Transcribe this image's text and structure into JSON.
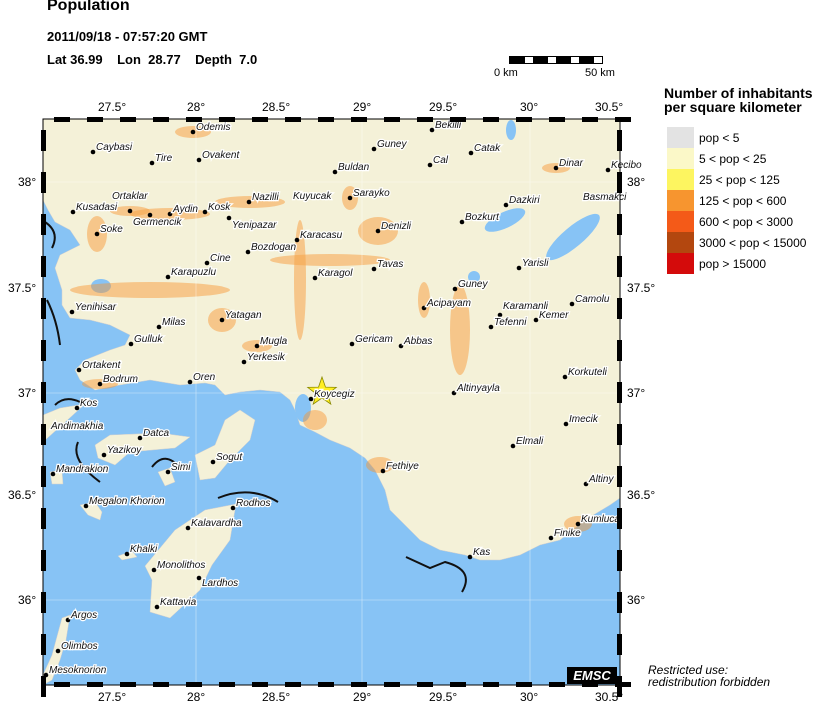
{
  "header": {
    "title": "Population",
    "datetime": "2011/09/18 - 07:57:20 GMT",
    "coords": "Lat 36.99    Lon  28.77    Depth  7.0"
  },
  "scale_bar": {
    "start_label": "0 km",
    "end_label": "50 km"
  },
  "axes": {
    "lon_ticks": [
      "27.5°",
      "28°",
      "28.5°",
      "29°",
      "29.5°",
      "30°",
      "30.5°"
    ],
    "lat_ticks": [
      "38°",
      "37.5°",
      "37°",
      "36.5°",
      "36°"
    ]
  },
  "legend": {
    "title_line1": "Number of inhabitants",
    "title_line2": "per square kilometer",
    "items": [
      {
        "label": "pop < 5",
        "color": "#e3e3e3"
      },
      {
        "label": "5 < pop < 25",
        "color": "#fbf8c8"
      },
      {
        "label": "25 < pop < 125",
        "color": "#fdf560"
      },
      {
        "label": "125 < pop < 600",
        "color": "#f7952f"
      },
      {
        "label": "600 < pop < 3000",
        "color": "#f45a18"
      },
      {
        "label": "3000 < pop < 15000",
        "color": "#b3470f"
      },
      {
        "label": "pop > 15000",
        "color": "#d40b0b"
      }
    ]
  },
  "colors": {
    "sea": "#87c3f5",
    "land": "#f4f1d8",
    "epicenter": "#ffee22"
  },
  "epicenter_icon": "star-icon",
  "cities": [
    "Odemis",
    "Caybasi",
    "Tire",
    "Ovakent",
    "Kusadasi",
    "Ortaklar",
    "Germencik",
    "Aydin",
    "Kosk",
    "Nazilli",
    "Kuyucak",
    "Yenipazar",
    "Soke",
    "Karacasu",
    "Bozdogan",
    "Cine",
    "Karapuzlu",
    "Karagol",
    "Yenihisar",
    "Milas",
    "Yatagan",
    "Gulluk",
    "Mugla",
    "Yerkesik",
    "Ortakent",
    "Bodrum",
    "Oren",
    "Koycegiz",
    "Kos",
    "Andimakhia",
    "Datca",
    "Yazikoy",
    "Mandrakion",
    "Simi",
    "Sogut",
    "Megalon Khorion",
    "Rodhos",
    "Kalavardha",
    "Khalki",
    "Monolithos",
    "Lardhos",
    "Kattavia",
    "Argos",
    "Olimbos",
    "Mesoknorion",
    "Bekilli",
    "Guney",
    "Cal",
    "Catak",
    "Buldan",
    "Dinar",
    "Kecibo",
    "Sarayko",
    "Dazkiri",
    "Basmakci",
    "Bozkurt",
    "Denizli",
    "Yarisli",
    "Tavas",
    "Guney",
    "Camolu",
    "Acipayam",
    "Karamanli",
    "Kemer",
    "Tefenni",
    "Gericam",
    "Abbas",
    "Korkuteli",
    "Altinyayla",
    "Imecik",
    "Elmali",
    "Fethiye",
    "Altiny",
    "Kumluca",
    "Finike",
    "Kas"
  ],
  "footer": {
    "logo": "EMSC",
    "restricted_line1": "Restricted use:",
    "restricted_line2": "redistribution forbidden"
  }
}
